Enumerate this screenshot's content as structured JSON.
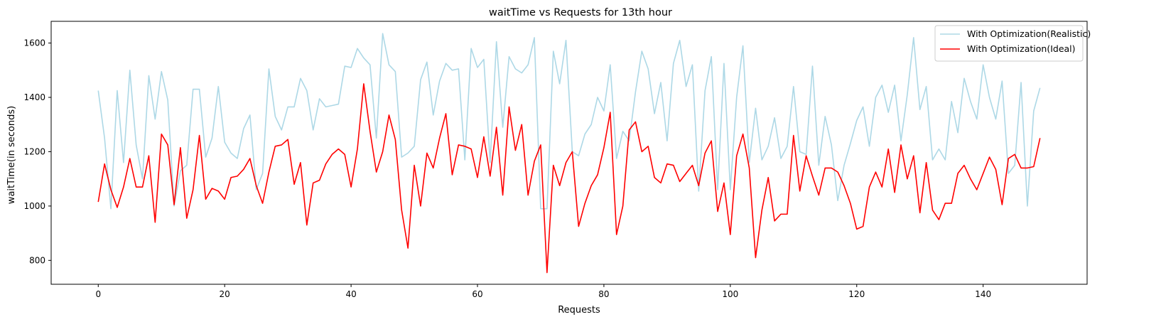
{
  "chart_data": {
    "type": "line",
    "title": "waitTime vs Requests for 13th hour",
    "xlabel": "Requests",
    "ylabel": "waitTime(in seconds)",
    "xlim": [
      -7.45,
      156.45
    ],
    "ylim": [
      712,
      1680
    ],
    "xticks": [
      0,
      20,
      40,
      60,
      80,
      100,
      120,
      140
    ],
    "yticks": [
      800,
      1000,
      1200,
      1400,
      1600
    ],
    "grid": false,
    "legend_position": "top-right",
    "series": [
      {
        "name": "With Optimization(Realistic)",
        "color": "#add8e6",
        "values": [
          1425,
          1250,
          990,
          1425,
          1160,
          1500,
          1225,
          1100,
          1480,
          1320,
          1495,
          1390,
          1000,
          1130,
          1150,
          1430,
          1430,
          1180,
          1250,
          1440,
          1235,
          1195,
          1175,
          1285,
          1335,
          1060,
          1120,
          1505,
          1330,
          1280,
          1365,
          1365,
          1470,
          1425,
          1280,
          1395,
          1365,
          1370,
          1375,
          1515,
          1510,
          1580,
          1545,
          1520,
          1250,
          1635,
          1520,
          1495,
          1180,
          1195,
          1220,
          1465,
          1530,
          1335,
          1460,
          1525,
          1500,
          1505,
          1170,
          1580,
          1510,
          1540,
          1160,
          1605,
          1290,
          1550,
          1505,
          1490,
          1520,
          1620,
          990,
          990,
          1570,
          1450,
          1610,
          1200,
          1185,
          1265,
          1300,
          1400,
          1350,
          1520,
          1175,
          1275,
          1240,
          1420,
          1570,
          1505,
          1340,
          1455,
          1240,
          1525,
          1610,
          1440,
          1520,
          1055,
          1425,
          1550,
          1060,
          1525,
          1060,
          1400,
          1590,
          1160,
          1360,
          1170,
          1220,
          1325,
          1175,
          1220,
          1440,
          1200,
          1190,
          1515,
          1150,
          1330,
          1225,
          1020,
          1150,
          1230,
          1315,
          1365,
          1220,
          1400,
          1445,
          1345,
          1445,
          1240,
          1410,
          1620,
          1355,
          1440,
          1170,
          1210,
          1170,
          1385,
          1270,
          1470,
          1385,
          1320,
          1520,
          1400,
          1320,
          1460,
          1120,
          1150,
          1455,
          1000,
          1350,
          1435
        ]
      },
      {
        "name": "With Optimization(Ideal)",
        "color": "#ff0000",
        "values": [
          1015,
          1155,
          1060,
          995,
          1070,
          1175,
          1070,
          1070,
          1185,
          940,
          1265,
          1225,
          1005,
          1215,
          955,
          1060,
          1260,
          1025,
          1065,
          1055,
          1025,
          1105,
          1110,
          1135,
          1175,
          1075,
          1010,
          1125,
          1220,
          1225,
          1245,
          1080,
          1160,
          930,
          1085,
          1095,
          1155,
          1190,
          1210,
          1190,
          1070,
          1210,
          1450,
          1275,
          1125,
          1200,
          1335,
          1245,
          985,
          845,
          1150,
          1000,
          1195,
          1140,
          1250,
          1340,
          1115,
          1225,
          1220,
          1210,
          1105,
          1255,
          1110,
          1290,
          1040,
          1365,
          1205,
          1300,
          1040,
          1165,
          1225,
          755,
          1150,
          1075,
          1160,
          1200,
          925,
          1010,
          1075,
          1115,
          1215,
          1345,
          895,
          1000,
          1280,
          1310,
          1200,
          1220,
          1105,
          1085,
          1155,
          1150,
          1090,
          1120,
          1150,
          1075,
          1195,
          1240,
          980,
          1085,
          895,
          1185,
          1265,
          1140,
          810,
          985,
          1105,
          945,
          970,
          970,
          1260,
          1055,
          1185,
          1110,
          1040,
          1140,
          1140,
          1125,
          1075,
          1010,
          915,
          925,
          1070,
          1125,
          1070,
          1210,
          1050,
          1225,
          1100,
          1185,
          975,
          1160,
          985,
          950,
          1010,
          1010,
          1120,
          1150,
          1100,
          1060,
          1120,
          1180,
          1135,
          1005,
          1175,
          1190,
          1140,
          1140,
          1145,
          1250
        ]
      }
    ]
  }
}
